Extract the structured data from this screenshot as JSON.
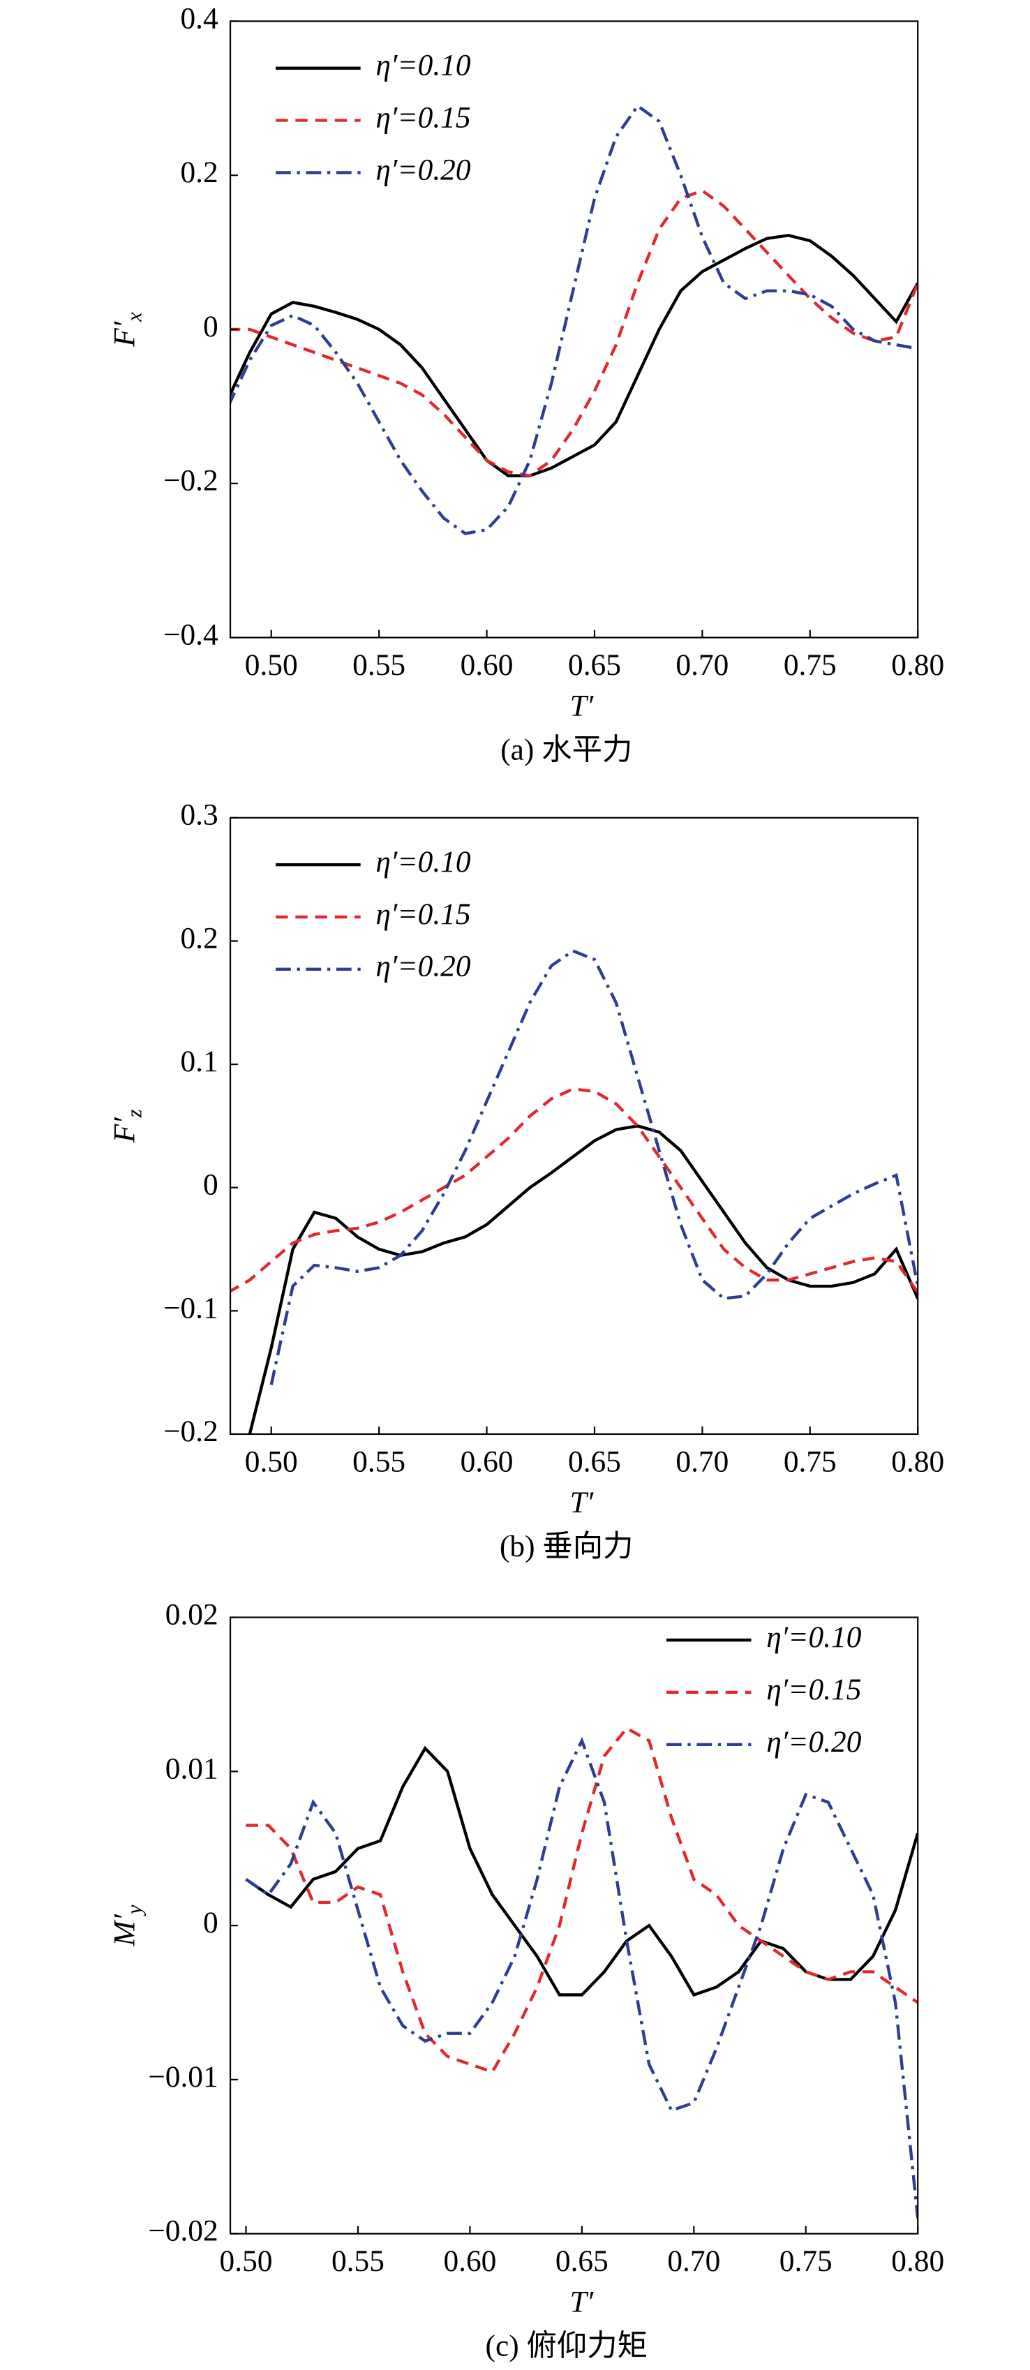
{
  "chart_data": [
    {
      "type": "line",
      "ylabel": "F′",
      "ylabel_sub": "x",
      "xlabel": "T′",
      "caption": "(a) 水平力",
      "legend": "upper left",
      "xlim": [
        0.481,
        0.8
      ],
      "ylim": [
        -0.4,
        0.4
      ],
      "xticks": [
        {
          "value": 0.5,
          "label": "0.50"
        },
        {
          "value": 0.55,
          "label": "0.55"
        },
        {
          "value": 0.6,
          "label": "0.60"
        },
        {
          "value": 0.65,
          "label": "0.65"
        },
        {
          "value": 0.7,
          "label": "0.70"
        },
        {
          "value": 0.75,
          "label": "0.75"
        },
        {
          "value": 0.8,
          "label": "0.80"
        }
      ],
      "yticks": [
        {
          "value": -0.4,
          "label": "−0.4"
        },
        {
          "value": -0.2,
          "label": "−0.2"
        },
        0,
        0.2,
        0.4
      ],
      "x": [
        0.48,
        0.49,
        0.5,
        0.51,
        0.52,
        0.53,
        0.54,
        0.55,
        0.56,
        0.57,
        0.58,
        0.59,
        0.6,
        0.61,
        0.62,
        0.63,
        0.64,
        0.65,
        0.66,
        0.67,
        0.68,
        0.69,
        0.7,
        0.71,
        0.72,
        0.73,
        0.74,
        0.75,
        0.76,
        0.77,
        0.78,
        0.79,
        0.8
      ],
      "series": [
        {
          "name": "η′=0.10",
          "color": "#000000",
          "dash": "solid",
          "values": [
            -0.09,
            -0.03,
            0.02,
            0.035,
            0.03,
            0.022,
            0.013,
            0.0,
            -0.02,
            -0.05,
            -0.09,
            -0.13,
            -0.17,
            -0.19,
            -0.19,
            -0.18,
            -0.165,
            -0.15,
            -0.12,
            -0.06,
            0.0,
            0.05,
            0.075,
            0.09,
            0.105,
            0.118,
            0.122,
            0.115,
            0.095,
            0.07,
            0.04,
            0.01,
            0.06
          ]
        },
        {
          "name": "η′=0.15",
          "color": "#e0282e",
          "dash": "dashed",
          "values": [
            0.0,
            0.0,
            -0.01,
            -0.02,
            -0.03,
            -0.04,
            -0.05,
            -0.06,
            -0.07,
            -0.085,
            -0.11,
            -0.14,
            -0.17,
            -0.185,
            -0.19,
            -0.17,
            -0.13,
            -0.08,
            -0.02,
            0.06,
            0.13,
            0.17,
            0.18,
            0.16,
            0.13,
            0.1,
            0.07,
            0.04,
            0.015,
            -0.005,
            -0.015,
            -0.01,
            0.06
          ]
        },
        {
          "name": "η′=0.20",
          "color": "#2c3e91",
          "dash": "dashdot",
          "values": [
            -0.1,
            -0.04,
            0.005,
            0.018,
            0.005,
            -0.03,
            -0.07,
            -0.12,
            -0.17,
            -0.21,
            -0.245,
            -0.265,
            -0.26,
            -0.23,
            -0.17,
            -0.07,
            0.05,
            0.17,
            0.25,
            0.29,
            0.27,
            0.2,
            0.12,
            0.06,
            0.04,
            0.05,
            0.05,
            0.045,
            0.03,
            0.0,
            -0.015,
            -0.02,
            -0.025
          ]
        }
      ]
    },
    {
      "type": "line",
      "ylabel": "F′",
      "ylabel_sub": "z",
      "xlabel": "T′",
      "caption": "(b) 垂向力",
      "legend": "upper left",
      "xlim": [
        0.481,
        0.8
      ],
      "ylim": [
        -0.2,
        0.3
      ],
      "xticks": [
        {
          "value": 0.5,
          "label": "0.50"
        },
        {
          "value": 0.55,
          "label": "0.55"
        },
        {
          "value": 0.6,
          "label": "0.60"
        },
        {
          "value": 0.65,
          "label": "0.65"
        },
        {
          "value": 0.7,
          "label": "0.70"
        },
        {
          "value": 0.75,
          "label": "0.75"
        },
        {
          "value": 0.8,
          "label": "0.80"
        }
      ],
      "yticks": [
        {
          "value": -0.2,
          "label": "−0.2"
        },
        {
          "value": -0.1,
          "label": "−0.1"
        },
        0,
        0.1,
        0.2,
        0.3
      ],
      "x": [
        0.48,
        0.49,
        0.5,
        0.51,
        0.52,
        0.53,
        0.54,
        0.55,
        0.56,
        0.57,
        0.58,
        0.59,
        0.6,
        0.61,
        0.62,
        0.63,
        0.64,
        0.65,
        0.66,
        0.67,
        0.68,
        0.69,
        0.7,
        0.71,
        0.72,
        0.73,
        0.74,
        0.75,
        0.76,
        0.77,
        0.78,
        0.79,
        0.8
      ],
      "series": [
        {
          "name": "η′=0.10",
          "color": "#000000",
          "dash": "solid",
          "values": [
            null,
            -0.2,
            -0.13,
            -0.05,
            -0.02,
            -0.025,
            -0.04,
            -0.05,
            -0.055,
            -0.052,
            -0.045,
            -0.04,
            -0.03,
            -0.015,
            0.0,
            0.012,
            0.025,
            0.038,
            0.047,
            0.05,
            0.045,
            0.03,
            0.005,
            -0.02,
            -0.045,
            -0.065,
            -0.075,
            -0.08,
            -0.08,
            -0.077,
            -0.07,
            -0.05,
            -0.09
          ]
        },
        {
          "name": "η′=0.15",
          "color": "#e0282e",
          "dash": "dashed",
          "values": [
            -0.085,
            -0.075,
            -0.06,
            -0.045,
            -0.038,
            -0.035,
            -0.033,
            -0.028,
            -0.02,
            -0.01,
            0.0,
            0.01,
            0.025,
            0.04,
            0.058,
            0.072,
            0.08,
            0.078,
            0.068,
            0.05,
            0.025,
            0.0,
            -0.025,
            -0.05,
            -0.065,
            -0.075,
            -0.075,
            -0.07,
            -0.065,
            -0.06,
            -0.057,
            -0.06,
            -0.085
          ]
        },
        {
          "name": "η′=0.20",
          "color": "#2c3e91",
          "dash": "dashdot",
          "values": [
            null,
            null,
            -0.16,
            -0.08,
            -0.063,
            -0.065,
            -0.068,
            -0.065,
            -0.055,
            -0.035,
            -0.005,
            0.03,
            0.07,
            0.11,
            0.15,
            0.18,
            0.192,
            0.185,
            0.15,
            0.09,
            0.03,
            -0.03,
            -0.075,
            -0.09,
            -0.088,
            -0.07,
            -0.045,
            -0.025,
            -0.015,
            -0.005,
            0.003,
            0.01,
            -0.08
          ]
        }
      ]
    },
    {
      "type": "line",
      "ylabel": "M′",
      "ylabel_sub": "y",
      "xlabel": "T′",
      "caption": "(c) 俯仰力矩",
      "legend": "upper right",
      "xlim": [
        0.493,
        0.8
      ],
      "ylim": [
        -0.02,
        0.02
      ],
      "xticks": [
        {
          "value": 0.5,
          "label": "0.50"
        },
        {
          "value": 0.55,
          "label": "0.55"
        },
        {
          "value": 0.6,
          "label": "0.60"
        },
        {
          "value": 0.65,
          "label": "0.65"
        },
        {
          "value": 0.7,
          "label": "0.70"
        },
        {
          "value": 0.75,
          "label": "0.75"
        },
        {
          "value": 0.8,
          "label": "0.80"
        }
      ],
      "yticks": [
        {
          "value": -0.02,
          "label": "−0.02"
        },
        {
          "value": -0.01,
          "label": "−0.01"
        },
        0,
        0.01,
        0.02
      ],
      "x": [
        0.5,
        0.51,
        0.52,
        0.53,
        0.54,
        0.55,
        0.56,
        0.57,
        0.58,
        0.59,
        0.6,
        0.61,
        0.62,
        0.63,
        0.64,
        0.65,
        0.66,
        0.67,
        0.68,
        0.69,
        0.7,
        0.71,
        0.72,
        0.73,
        0.74,
        0.75,
        0.76,
        0.77,
        0.78,
        0.79,
        0.8
      ],
      "series": [
        {
          "name": "η′=0.10",
          "color": "#000000",
          "dash": "solid",
          "values": [
            0.003,
            0.002,
            0.0012,
            0.003,
            0.0035,
            0.005,
            0.0055,
            0.009,
            0.0115,
            0.01,
            0.005,
            0.002,
            0.0,
            -0.002,
            -0.0045,
            -0.0045,
            -0.003,
            -0.001,
            0.0,
            -0.002,
            -0.0045,
            -0.004,
            -0.003,
            -0.001,
            -0.0015,
            -0.003,
            -0.0035,
            -0.0035,
            -0.002,
            0.001,
            0.006
          ]
        },
        {
          "name": "η′=0.15",
          "color": "#e0282e",
          "dash": "dashed",
          "values": [
            0.0065,
            0.0065,
            0.005,
            0.0015,
            0.0015,
            0.0025,
            0.002,
            -0.003,
            -0.007,
            -0.0085,
            -0.009,
            -0.0095,
            -0.007,
            -0.004,
            0.0,
            0.006,
            0.011,
            0.0128,
            0.012,
            0.007,
            0.003,
            0.002,
            0.0,
            -0.001,
            -0.002,
            -0.003,
            -0.0035,
            -0.003,
            -0.003,
            -0.004,
            -0.005
          ]
        },
        {
          "name": "η′=0.20",
          "color": "#2c3e91",
          "dash": "dashdot",
          "values": [
            0.003,
            0.002,
            0.004,
            0.008,
            0.006,
            0.001,
            -0.004,
            -0.0065,
            -0.0075,
            -0.007,
            -0.007,
            -0.005,
            -0.002,
            0.003,
            0.009,
            0.012,
            0.008,
            -0.001,
            -0.009,
            -0.012,
            -0.0115,
            -0.008,
            -0.004,
            0.0,
            0.005,
            0.0085,
            0.008,
            0.005,
            0.002,
            -0.005,
            -0.019
          ]
        }
      ]
    }
  ]
}
